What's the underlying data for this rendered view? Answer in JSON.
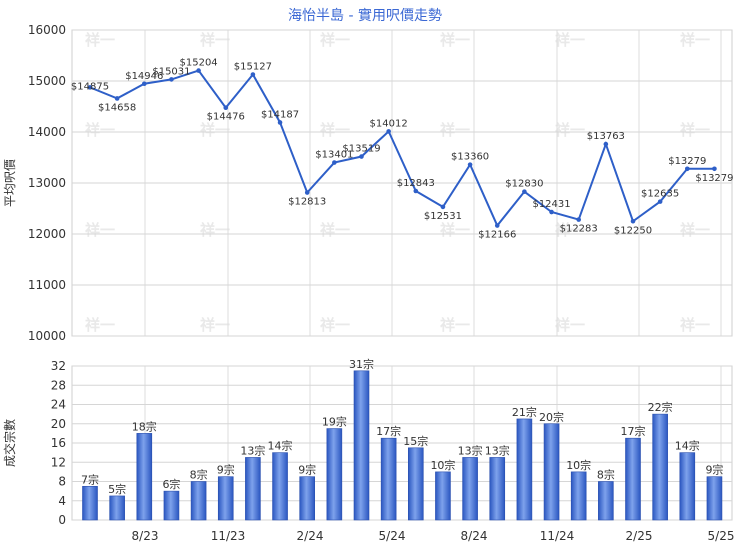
{
  "chart_data": [
    {
      "type": "line",
      "title": "海怡半島 - 實用呎價走勢",
      "ylabel": "平均呎價",
      "ylim": [
        10000,
        16000
      ],
      "yticks": [
        10000,
        11000,
        12000,
        13000,
        14000,
        15000,
        16000
      ],
      "grid": true,
      "color": "#2e5fc8",
      "watermark": "祥一",
      "labels": [
        "$14875",
        "$14658",
        "$14946",
        "$15031",
        "$15204",
        "$14476",
        "$15127",
        "$14187",
        "$12813",
        "$13401",
        "$13519",
        "$14012",
        "$12843",
        "$12531",
        "$13360",
        "$12166",
        "$12830",
        "$12431",
        "$12283",
        "$13763",
        "$12250",
        "$12635",
        "$13279",
        "$13279"
      ],
      "values": [
        14875,
        14658,
        14946,
        15031,
        15204,
        14476,
        15127,
        14187,
        12813,
        13401,
        13519,
        14012,
        12843,
        12531,
        13360,
        12166,
        12830,
        12431,
        12283,
        13763,
        12250,
        12635,
        13279,
        13279
      ]
    },
    {
      "type": "bar",
      "ylabel": "成交宗數",
      "ylim": [
        0,
        32
      ],
      "yticks": [
        0,
        4,
        8,
        12,
        16,
        20,
        24,
        28,
        32
      ],
      "grid": true,
      "color": "#2e5fc8",
      "categories": [
        "8/23",
        "11/23",
        "2/24",
        "5/24",
        "8/24",
        "11/24",
        "2/25",
        "5/25"
      ],
      "labels": [
        "7宗",
        "5宗",
        "18宗",
        "6宗",
        "8宗",
        "9宗",
        "13宗",
        "14宗",
        "9宗",
        "19宗",
        "31宗",
        "17宗",
        "15宗",
        "10宗",
        "13宗",
        "13宗",
        "21宗",
        "20宗",
        "10宗",
        "8宗",
        "17宗",
        "22宗",
        "14宗",
        "9宗"
      ],
      "values": [
        7,
        5,
        18,
        6,
        8,
        9,
        13,
        14,
        9,
        19,
        31,
        17,
        15,
        10,
        13,
        13,
        21,
        20,
        10,
        8,
        17,
        22,
        14,
        9
      ]
    }
  ]
}
